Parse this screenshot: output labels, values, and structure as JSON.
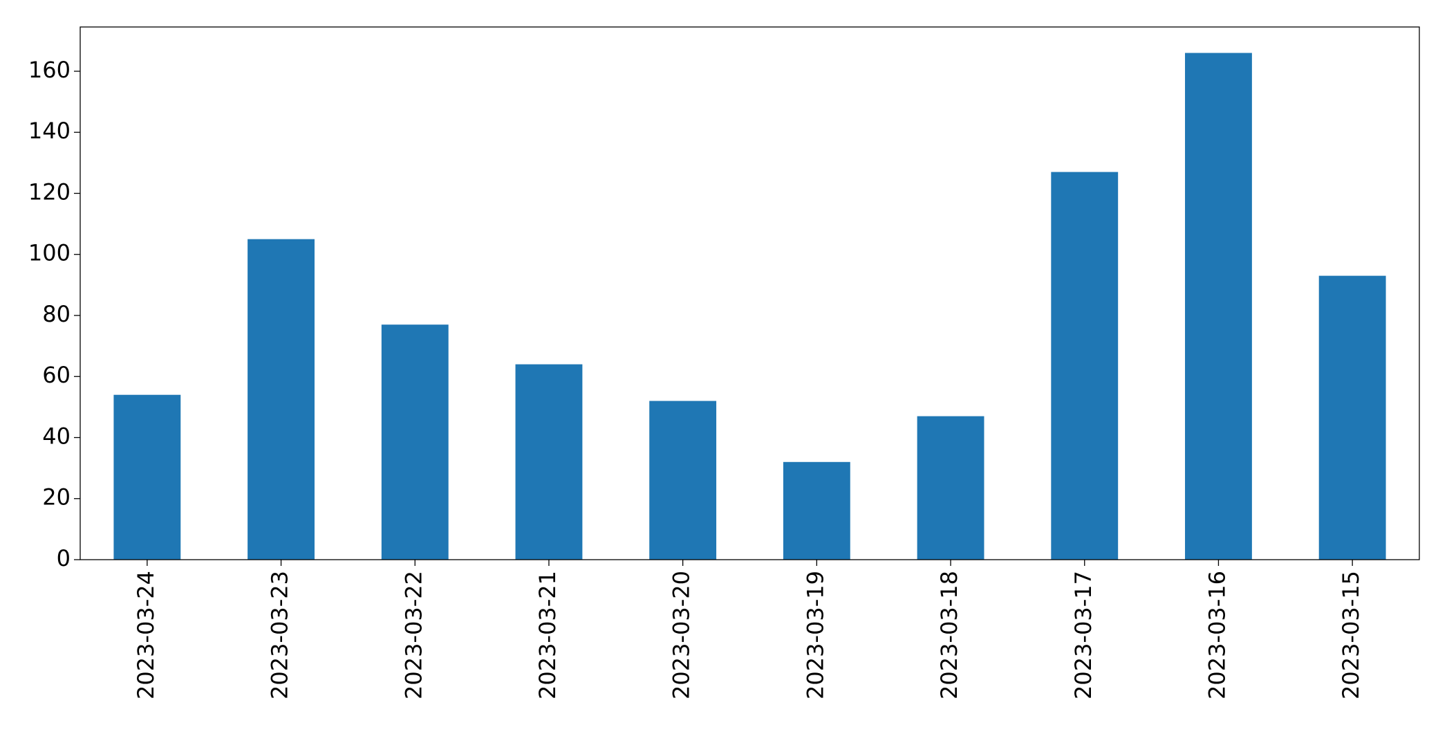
{
  "chart_data": {
    "type": "bar",
    "categories": [
      "2023-03-24",
      "2023-03-23",
      "2023-03-22",
      "2023-03-21",
      "2023-03-20",
      "2023-03-19",
      "2023-03-18",
      "2023-03-17",
      "2023-03-16",
      "2023-03-15"
    ],
    "values": [
      54,
      105,
      77,
      64,
      52,
      32,
      47,
      127,
      166,
      93
    ],
    "color": "#1f77b4",
    "ylim": [
      0,
      174.5
    ],
    "yticks": [
      0,
      20,
      40,
      60,
      80,
      100,
      120,
      140,
      160
    ],
    "grid": false
  }
}
